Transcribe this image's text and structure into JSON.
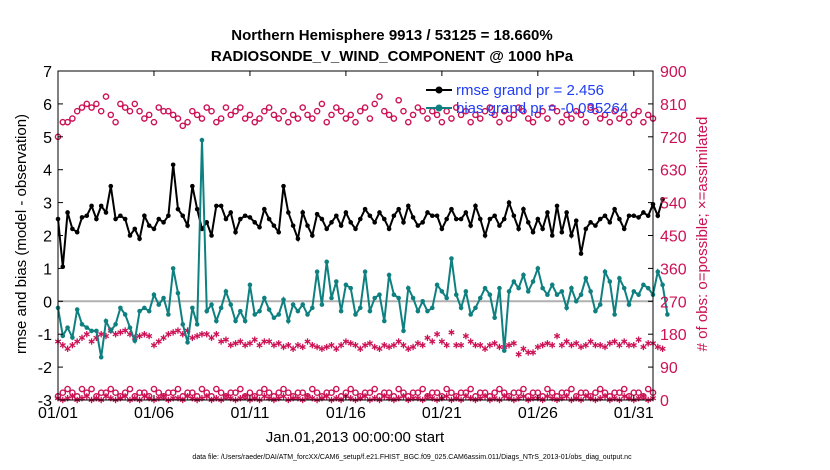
{
  "chart_data": {
    "type": "line",
    "title": "Northern Hemisphere 9913 / 53125 = 18.660%",
    "subtitle": "RADIOSONDE_V_WIND_COMPONENT @ 1000 hPa",
    "xlabel": "Jan.01,2013 00:00:00 start",
    "ylabel": "rmse and bias (model - observation)",
    "y2label": "# of obs: o=possible; ×=assimilated",
    "footer": "data file: /Users/raeder/DAI/ATM_forcXX/CAM6_setup/f.e21.FHIST_BGC.f09_025.CAM6assim.011/Diags_NTrS_2013-01/obs_diag_output.nc",
    "xlim": [
      0,
      124
    ],
    "ylim": [
      -3,
      7
    ],
    "y2lim": [
      0,
      900
    ],
    "x_ticks": [
      {
        "label": "01/01",
        "value": 0
      },
      {
        "label": "01/06",
        "value": 20
      },
      {
        "label": "01/11",
        "value": 40
      },
      {
        "label": "01/16",
        "value": 60
      },
      {
        "label": "01/21",
        "value": 80
      },
      {
        "label": "01/26",
        "value": 100
      },
      {
        "label": "01/31",
        "value": 120
      }
    ],
    "y_ticks": [
      "-3",
      "-2",
      "-1",
      "0",
      "1",
      "2",
      "3",
      "4",
      "5",
      "6",
      "7"
    ],
    "y2_ticks": [
      "0",
      "90",
      "180",
      "270",
      "360",
      "450",
      "540",
      "630",
      "720",
      "810",
      "900"
    ],
    "colors": {
      "rmse": "#000000",
      "bias": "#0f8080",
      "counts": "#cc1155",
      "zero_line": "#b0b0b0",
      "legend_text": "#1f3df5"
    },
    "series": [
      {
        "name": "rmse grand pr = 2.456",
        "key": "rmse",
        "values": [
          2.5,
          1.05,
          2.7,
          2.2,
          2.1,
          2.55,
          2.6,
          2.9,
          2.5,
          2.9,
          2.7,
          3.5,
          2.5,
          2.6,
          2.5,
          2.0,
          2.2,
          1.9,
          2.6,
          2.3,
          2.2,
          2.5,
          2.4,
          2.6,
          4.15,
          2.8,
          2.6,
          2.3,
          3.5,
          2.8,
          2.2,
          2.4,
          2.0,
          2.9,
          2.9,
          2.5,
          2.7,
          2.1,
          2.5,
          2.6,
          2.55,
          2.4,
          2.25,
          2.8,
          2.5,
          2.3,
          2.1,
          3.5,
          2.7,
          2.3,
          1.9,
          2.7,
          2.3,
          2.0,
          2.65,
          2.5,
          2.2,
          2.4,
          2.6,
          2.3,
          2.7,
          2.4,
          2.2,
          2.5,
          2.8,
          2.6,
          2.4,
          2.7,
          2.5,
          2.2,
          2.6,
          2.8,
          2.4,
          2.9,
          2.55,
          2.3,
          2.4,
          2.7,
          2.6,
          2.6,
          2.2,
          2.5,
          2.8,
          2.5,
          2.5,
          2.7,
          2.3,
          2.9,
          2.5,
          2.0,
          2.5,
          2.6,
          2.3,
          2.5,
          3.0,
          2.6,
          2.2,
          2.8,
          2.4,
          2.1,
          2.5,
          2.2,
          2.7,
          2.0,
          2.9,
          2.1,
          2.7,
          2.0,
          2.45,
          1.45,
          2.2,
          2.4,
          2.3,
          2.5,
          2.6,
          2.4,
          2.8,
          2.5,
          2.2,
          2.6,
          2.6,
          2.55,
          2.7,
          2.6,
          2.95,
          2.6,
          3.1
        ]
      },
      {
        "name": "bias grand pr = -0.035264",
        "key": "bias",
        "values": [
          -0.2,
          -1.05,
          -0.8,
          -1.1,
          -0.25,
          -0.7,
          -0.8,
          -0.9,
          -0.9,
          -1.7,
          -0.6,
          -0.9,
          -0.7,
          -0.2,
          -0.4,
          -0.8,
          -1.2,
          -0.3,
          -0.2,
          -0.3,
          0.2,
          -0.1,
          0.1,
          -0.4,
          1.0,
          0.25,
          -0.7,
          -1.25,
          -0.2,
          -0.7,
          4.9,
          -0.3,
          -0.1,
          -0.6,
          -0.2,
          0.3,
          -0.1,
          -0.6,
          -0.3,
          -0.6,
          0.5,
          -0.4,
          -0.3,
          0.1,
          -0.25,
          -0.5,
          -0.4,
          0.05,
          -0.6,
          -0.1,
          -0.3,
          -0.1,
          -0.4,
          -0.2,
          0.9,
          -0.1,
          1.2,
          0.1,
          0.6,
          -0.3,
          0.5,
          0.4,
          -0.4,
          -0.2,
          0.9,
          -0.3,
          0.1,
          0.2,
          -0.6,
          0.8,
          0.2,
          0.1,
          -0.9,
          0.4,
          0.1,
          -0.3,
          0.0,
          -0.3,
          -0.2,
          0.5,
          0.3,
          0.1,
          1.3,
          0.2,
          -0.2,
          0.3,
          -0.4,
          -0.2,
          0.1,
          0.4,
          0.2,
          -0.5,
          0.4,
          -1.5,
          0.3,
          0.6,
          0.4,
          0.8,
          0.3,
          0.6,
          1.0,
          0.4,
          0.2,
          0.5,
          0.2,
          0.3,
          -0.2,
          0.4,
          0.0,
          0.2,
          0.7,
          0.3,
          -0.3,
          -0.1,
          0.9,
          0.6,
          -0.4,
          0.7,
          0.4,
          -0.1,
          0.3,
          0.2,
          0.5,
          0.4,
          0.2,
          0.9,
          0.5,
          -0.4
        ]
      }
    ],
    "count_series": [
      {
        "name": "possible (upper band)",
        "marker": "o",
        "values": [
          720,
          760,
          760,
          770,
          790,
          800,
          810,
          800,
          810,
          790,
          830,
          780,
          760,
          810,
          800,
          790,
          810,
          790,
          770,
          780,
          760,
          800,
          790,
          790,
          780,
          770,
          750,
          760,
          790,
          780,
          770,
          800,
          790,
          760,
          770,
          800,
          780,
          790,
          800,
          770,
          780,
          760,
          770,
          790,
          800,
          780,
          770,
          790,
          760,
          780,
          770,
          800,
          780,
          770,
          790,
          810,
          760,
          780,
          800,
          790,
          770,
          780,
          760,
          790,
          800,
          770,
          810,
          830,
          790,
          780,
          770,
          820,
          790,
          760,
          780,
          800,
          790,
          770,
          790,
          780,
          760,
          790,
          770,
          800,
          780,
          790,
          760,
          780,
          770,
          790,
          800,
          780,
          760,
          790,
          770,
          780,
          800,
          790,
          770,
          760,
          780,
          790,
          770,
          800,
          790,
          760,
          780,
          770,
          790,
          780,
          760,
          800,
          790,
          770,
          780,
          760,
          790,
          770,
          780,
          760,
          780,
          790,
          760,
          780,
          770
        ]
      },
      {
        "name": "assimilated (upper band)",
        "marker": "*",
        "values": [
          160,
          150,
          140,
          150,
          160,
          170,
          180,
          160,
          170,
          180,
          175,
          190,
          180,
          185,
          190,
          180,
          170,
          175,
          180,
          175,
          150,
          160,
          170,
          180,
          185,
          190,
          180,
          190,
          170,
          175,
          180,
          180,
          170,
          180,
          160,
          165,
          150,
          155,
          160,
          150,
          155,
          165,
          150,
          160,
          160,
          150,
          155,
          145,
          150,
          140,
          150,
          145,
          160,
          150,
          145,
          140,
          145,
          150,
          140,
          150,
          160,
          155,
          150,
          140,
          150,
          155,
          145,
          140,
          150,
          145,
          150,
          160,
          150,
          140,
          145,
          155,
          150,
          170,
          160,
          180,
          160,
          150,
          185,
          150,
          150,
          175,
          160,
          150,
          150,
          140,
          150,
          155,
          145,
          145,
          150,
          155,
          125,
          140,
          130,
          130,
          145,
          150,
          155,
          150,
          175,
          150,
          160,
          150,
          155,
          145,
          150,
          160,
          150,
          150,
          145,
          155,
          160,
          150,
          160,
          150,
          150,
          165,
          145,
          155,
          155,
          145,
          140
        ]
      },
      {
        "name": "possible (lower band)",
        "marker": "o",
        "values": [
          10,
          20,
          30,
          20,
          10,
          30,
          20,
          30,
          10,
          20,
          20,
          30,
          20,
          10,
          20,
          30,
          10,
          20,
          20,
          10,
          30,
          20,
          10,
          20,
          20,
          30,
          10,
          20,
          20,
          10,
          30,
          20,
          10,
          30,
          20,
          10,
          20,
          20,
          30,
          10,
          20,
          10,
          20,
          30,
          20,
          10,
          20,
          30,
          20,
          10,
          20,
          20,
          10,
          30,
          20,
          10,
          20,
          20,
          30,
          10,
          20,
          30,
          20,
          10,
          20,
          20,
          30,
          10,
          20,
          20,
          10,
          30,
          20,
          10,
          20,
          20,
          30,
          10,
          20,
          20,
          10,
          30,
          20,
          10,
          20,
          20,
          30,
          10,
          20,
          20,
          10,
          20,
          30,
          20,
          10,
          20,
          20,
          30,
          10,
          20,
          20,
          10,
          30,
          20,
          10,
          20,
          20,
          30,
          10,
          20,
          20,
          10,
          20,
          30,
          20,
          10,
          20,
          20,
          30,
          10,
          20,
          20,
          10,
          30,
          20
        ]
      },
      {
        "name": "assimilated (lower band)",
        "marker": "*",
        "values": [
          5,
          0,
          5,
          10,
          0,
          5,
          10,
          0,
          5,
          0,
          10,
          5,
          0,
          5,
          10,
          0,
          5,
          0,
          10,
          5,
          0,
          5,
          10,
          0,
          5,
          5,
          0,
          10,
          5,
          0,
          5,
          10,
          0,
          5,
          0,
          10,
          5,
          0,
          5,
          10,
          0,
          5,
          0,
          10,
          5,
          0,
          5,
          10,
          0,
          5,
          5,
          0,
          10,
          5,
          0,
          5,
          10,
          0,
          5,
          0,
          10,
          5,
          0,
          5,
          10,
          0,
          5,
          0,
          10,
          5,
          0,
          5,
          10,
          0,
          5,
          5,
          0,
          10,
          5,
          0,
          5,
          10,
          0,
          5,
          0,
          10,
          5,
          0,
          5,
          10,
          0,
          5,
          0,
          10,
          5,
          0,
          5,
          10,
          0,
          5,
          5,
          0,
          10,
          5,
          0,
          5,
          10,
          0,
          5,
          0,
          10,
          5,
          0,
          5,
          10,
          0,
          5,
          0,
          10,
          5,
          0,
          5,
          10,
          0,
          5
        ]
      }
    ]
  }
}
